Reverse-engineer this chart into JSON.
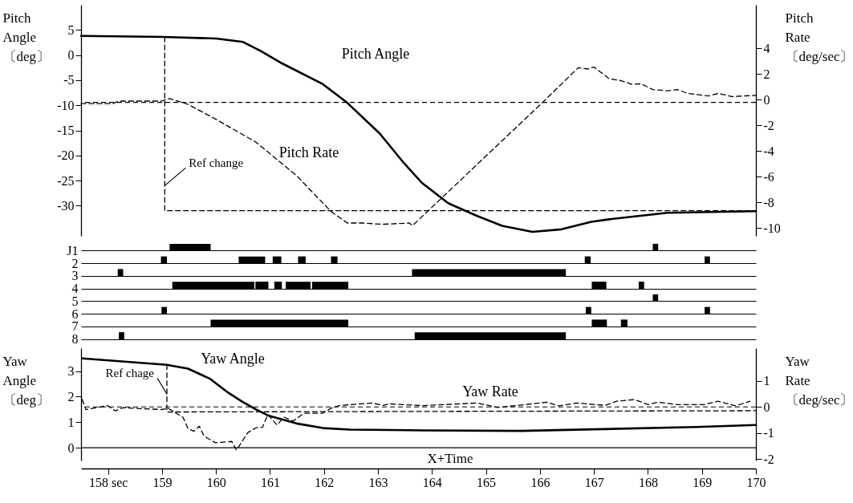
{
  "chart_data": [
    {
      "type": "line",
      "ylabel": "Pitch Angle 〔deg〕",
      "y2label": "Pitch Rate 〔deg/sec〕",
      "xlim": [
        157.5,
        170
      ],
      "ylim": [
        -36,
        10
      ],
      "yticks": [
        5,
        0,
        -5,
        -10,
        -15,
        -20,
        -25,
        -30
      ],
      "y2lim": [
        -10.6,
        7.4
      ],
      "y2ticks": [
        4,
        2,
        0,
        -2,
        -4,
        -6,
        -8,
        -10
      ],
      "tick_labels": "y",
      "series": [
        {
          "name": "Pitch Angle",
          "color": "#000000",
          "line_style": "solid",
          "x": [
            157.5,
            159,
            160,
            160.5,
            160.83,
            161.23,
            161.98,
            162.43,
            163.03,
            163.48,
            163.82,
            164.3,
            164.83,
            165.3,
            165.86,
            166.4,
            166.95,
            167.28,
            168.36,
            170
          ],
          "values": [
            3.8,
            3.6,
            3.3,
            2.6,
            0.8,
            -1.7,
            -5.8,
            -9.5,
            -15.6,
            -21.5,
            -25.5,
            -29.5,
            -32,
            -34,
            -35.2,
            -34.7,
            -33.2,
            -32.7,
            -31.4,
            -31.1
          ]
        },
        {
          "name": "Pitch Rate",
          "color": "#000000",
          "line_style": "dashed",
          "axis": "y2",
          "x": [
            157.5,
            158.09,
            158.19,
            158.99,
            159.14,
            159.48,
            159.99,
            160.74,
            161.49,
            162.13,
            162.43,
            162.73,
            163.07,
            163.58,
            163.64,
            166.05,
            166.71,
            166.89,
            167.0,
            167.28,
            167.49,
            167.71,
            167.87,
            168.09,
            168.36,
            168.55,
            168.73,
            169.12,
            169.31,
            169.55,
            170
          ],
          "values": [
            -0.3,
            -0.3,
            -0.1,
            -0.1,
            0.1,
            -0.35,
            -1.5,
            -3.3,
            -5.9,
            -8.7,
            -9.6,
            -9.6,
            -9.7,
            -9.6,
            -9.8,
            -0.2,
            2.5,
            2.4,
            2.55,
            1.65,
            1.5,
            1.2,
            1.25,
            0.8,
            0.7,
            0.8,
            0.5,
            0.3,
            0.5,
            0.25,
            0.35
          ]
        },
        {
          "color": "#000000",
          "line_style": "dashed",
          "x": [
            159.05,
            159.05,
            170
          ],
          "values": [
            3.6,
            -31,
            -31
          ]
        }
      ],
      "ref_lines": [
        {
          "axis": "y2",
          "value": -0.2,
          "line_style": "dashed"
        }
      ],
      "annotations": [
        {
          "text": "Ref change",
          "x": 159.05,
          "y": -26
        }
      ]
    },
    {
      "type": "bar",
      "orientation": "horizontal",
      "categories": [
        "J1",
        "2",
        "3",
        "4",
        "5",
        "6",
        "7",
        "8"
      ],
      "xlim": [
        157.5,
        170
      ],
      "tick_labels": "y",
      "grid": "y",
      "series": [
        {
          "color": "#000000",
          "base": [
            159.14,
            158.98,
            158.18,
            159.19,
            168.09,
            158.99,
            159.9,
            158.2
          ],
          "values": [
            0.76,
            0.11,
            0.1,
            1.52,
            0.1,
            0.1,
            2.55,
            0.1
          ]
        },
        {
          "color": "#000000",
          "base": [
            168.09,
            160.42,
            163.63,
            160.73,
            null,
            166.85,
            166.96,
            163.68
          ],
          "values": [
            0.1,
            0.49,
            2.85,
            0.24,
            null,
            0.1,
            0.28,
            2.8
          ]
        },
        {
          "color": "#000000",
          "base": [
            null,
            161.05,
            null,
            161.08,
            null,
            169.05,
            167.5,
            null
          ],
          "values": [
            null,
            0.16,
            null,
            0.14,
            null,
            0.1,
            0.12,
            null
          ]
        },
        {
          "color": "#000000",
          "base": [
            null,
            161.52,
            null,
            161.29,
            null,
            null,
            null,
            null
          ],
          "values": [
            null,
            0.14,
            null,
            0.46,
            null,
            null,
            null,
            null
          ]
        },
        {
          "color": "#000000",
          "base": [
            null,
            162.13,
            null,
            161.78,
            null,
            null,
            null,
            null
          ],
          "values": [
            null,
            0.12,
            null,
            0.67,
            null,
            null,
            null,
            null
          ]
        },
        {
          "color": "#000000",
          "base": [
            null,
            166.83,
            null,
            166.96,
            null,
            null,
            null,
            null
          ],
          "values": [
            null,
            0.11,
            null,
            0.27,
            null,
            null,
            null,
            null
          ]
        },
        {
          "color": "#000000",
          "base": [
            null,
            169.05,
            null,
            167.83,
            null,
            null,
            null,
            null
          ],
          "values": [
            null,
            0.1,
            null,
            0.1,
            null,
            null,
            null,
            null
          ]
        }
      ]
    },
    {
      "type": "line",
      "ylabel": "Yaw Angle 〔deg〕",
      "y2label": "Yaw Rate 〔deg/sec〕",
      "xlim": [
        157.5,
        170
      ],
      "xticks": [
        {
          "value": 158,
          "label": "158 sec"
        },
        159,
        160,
        161,
        162,
        163,
        164,
        165,
        166,
        167,
        168,
        169,
        170
      ],
      "ylim": [
        -0.5,
        3.9
      ],
      "yticks": [
        0,
        1,
        2,
        3
      ],
      "y2lim": [
        -2.05,
        2.25
      ],
      "y2ticks": [
        1,
        0,
        -1,
        -2
      ],
      "series": [
        {
          "name": "Yaw Angle",
          "color": "#000000",
          "line_style": "solid",
          "x": [
            157.52,
            159.09,
            159.48,
            159.89,
            160.23,
            160.49,
            160.74,
            160.98,
            161.49,
            161.98,
            162.48,
            163.82,
            165.65,
            168.9,
            170
          ],
          "values": [
            3.5,
            3.25,
            3.1,
            2.7,
            2.15,
            1.8,
            1.5,
            1.25,
            0.95,
            0.77,
            0.71,
            0.68,
            0.66,
            0.81,
            0.89
          ]
        },
        {
          "name": "Yaw Rate",
          "color": "#000000",
          "line_style": "dashed",
          "axis": "y2",
          "x": [
            157.52,
            157.59,
            157.99,
            158.13,
            158.28,
            158.99,
            159.11,
            159.39,
            159.48,
            159.59,
            159.69,
            159.78,
            159.99,
            160.29,
            160.38,
            160.59,
            160.74,
            160.86,
            160.96,
            161.13,
            161.26,
            161.43,
            161.63,
            161.98,
            162.13,
            162.28,
            162.88,
            163.1,
            163.2,
            163.8,
            164.25,
            164.84,
            165.22,
            166.13,
            166.35,
            166.67,
            167.21,
            167.42,
            167.75,
            168.01,
            168.18,
            168.55,
            169.04,
            169.3,
            169.62,
            169.89
          ],
          "values": [
            0.29,
            -0.1,
            0.05,
            -0.15,
            -0.03,
            -0.1,
            -0.05,
            -0.4,
            -0.83,
            -0.93,
            -0.74,
            -1.12,
            -1.37,
            -1.32,
            -1.65,
            -0.98,
            -0.8,
            -0.78,
            -0.29,
            -0.69,
            -0.39,
            -0.54,
            -0.24,
            -0.24,
            -0.05,
            0.05,
            0.15,
            0.06,
            0.12,
            0.05,
            0.09,
            0.15,
            -0.02,
            0.18,
            0.04,
            0.15,
            0.06,
            0.22,
            0.28,
            0.09,
            0.18,
            0.09,
            0.09,
            0.22,
            0.04,
            0.22
          ]
        },
        {
          "color": "#000000",
          "line_style": "dashed",
          "x": [
            159.09,
            159.09,
            170
          ],
          "values": [
            3.25,
            1.4,
            1.45
          ]
        }
      ],
      "ref_lines": [
        {
          "axis": "y2",
          "value": 0,
          "line_style": "dashed"
        },
        {
          "axis": "y",
          "value": 0,
          "line_style": "solid"
        }
      ],
      "annotations": [
        {
          "text": "Ref chage",
          "x": 159.09,
          "y": 2.1
        },
        "X+Time"
      ]
    }
  ]
}
